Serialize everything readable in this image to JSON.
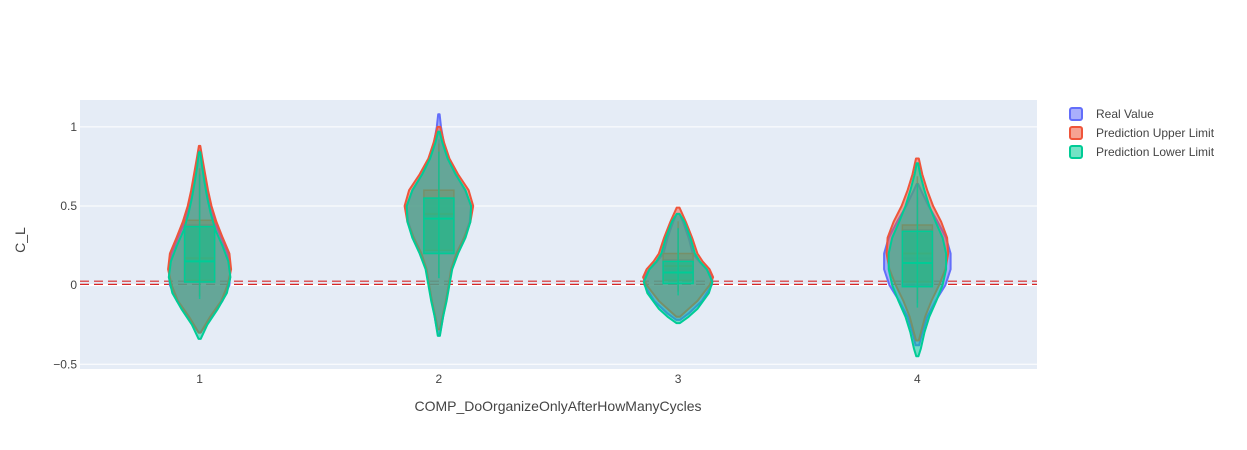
{
  "chart_data": {
    "type": "violin",
    "xlabel": "COMP_DoOrganizeOnlyAfterHowManyCycles",
    "ylabel": "C_L",
    "categories": [
      "1",
      "2",
      "3",
      "4"
    ],
    "ylim": [
      -0.53,
      1.17
    ],
    "yticks": [
      {
        "value": 1,
        "label": "1"
      },
      {
        "value": 0.5,
        "label": "0.5"
      },
      {
        "value": 0,
        "label": "0"
      },
      {
        "value": -0.5,
        "label": "−0.5"
      }
    ],
    "grid": true,
    "legend_position": "top-right",
    "reference_lines": [
      {
        "y": 0.025,
        "color": "#d62728",
        "style": "dashed"
      },
      {
        "y": 0.005,
        "color": "#d62728",
        "style": "dashed"
      }
    ],
    "series": [
      {
        "name": "Real Value",
        "color": "#636efa",
        "violins": [
          {
            "category": "1",
            "min": -0.3,
            "q1": 0.02,
            "median": 0.16,
            "q3": 0.38,
            "max": 0.85,
            "profile": [
              [
                -0.3,
                0.03
              ],
              [
                -0.2,
                0.32
              ],
              [
                -0.1,
                0.65
              ],
              [
                0.0,
                0.85
              ],
              [
                0.1,
                0.88
              ],
              [
                0.2,
                0.8
              ],
              [
                0.3,
                0.62
              ],
              [
                0.4,
                0.42
              ],
              [
                0.5,
                0.3
              ],
              [
                0.6,
                0.2
              ],
              [
                0.7,
                0.12
              ],
              [
                0.8,
                0.05
              ],
              [
                0.85,
                0.02
              ]
            ]
          },
          {
            "category": "2",
            "min": -0.32,
            "q1": 0.2,
            "median": 0.44,
            "q3": 0.55,
            "max": 1.08,
            "profile": [
              [
                -0.32,
                0.02
              ],
              [
                -0.25,
                0.08
              ],
              [
                -0.1,
                0.2
              ],
              [
                0.0,
                0.28
              ],
              [
                0.1,
                0.36
              ],
              [
                0.2,
                0.52
              ],
              [
                0.3,
                0.72
              ],
              [
                0.4,
                0.88
              ],
              [
                0.5,
                0.92
              ],
              [
                0.6,
                0.75
              ],
              [
                0.7,
                0.48
              ],
              [
                0.8,
                0.26
              ],
              [
                0.9,
                0.14
              ],
              [
                1.0,
                0.06
              ],
              [
                1.08,
                0.02
              ]
            ]
          },
          {
            "category": "3",
            "min": -0.22,
            "q1": 0.03,
            "median": 0.1,
            "q3": 0.16,
            "max": 0.45,
            "profile": [
              [
                -0.22,
                0.05
              ],
              [
                -0.18,
                0.3
              ],
              [
                -0.1,
                0.68
              ],
              [
                0.0,
                0.96
              ],
              [
                0.05,
                0.98
              ],
              [
                0.1,
                0.82
              ],
              [
                0.15,
                0.6
              ],
              [
                0.2,
                0.42
              ],
              [
                0.3,
                0.3
              ],
              [
                0.4,
                0.14
              ],
              [
                0.45,
                0.04
              ]
            ]
          },
          {
            "category": "4",
            "min": -0.38,
            "q1": 0.0,
            "median": 0.17,
            "q3": 0.35,
            "max": 0.64,
            "profile": [
              [
                -0.38,
                0.05
              ],
              [
                -0.3,
                0.14
              ],
              [
                -0.2,
                0.28
              ],
              [
                -0.1,
                0.52
              ],
              [
                0.0,
                0.8
              ],
              [
                0.1,
                0.95
              ],
              [
                0.2,
                0.95
              ],
              [
                0.3,
                0.82
              ],
              [
                0.4,
                0.58
              ],
              [
                0.5,
                0.32
              ],
              [
                0.6,
                0.1
              ],
              [
                0.64,
                0.02
              ]
            ]
          }
        ]
      },
      {
        "name": "Prediction Upper Limit",
        "color": "#ef553b",
        "violins": [
          {
            "category": "1",
            "min": -0.3,
            "q1": 0.03,
            "median": 0.17,
            "q3": 0.41,
            "max": 0.88,
            "profile": [
              [
                -0.3,
                0.03
              ],
              [
                -0.2,
                0.3
              ],
              [
                -0.1,
                0.62
              ],
              [
                0.0,
                0.8
              ],
              [
                0.1,
                0.9
              ],
              [
                0.2,
                0.85
              ],
              [
                0.3,
                0.66
              ],
              [
                0.4,
                0.48
              ],
              [
                0.5,
                0.34
              ],
              [
                0.6,
                0.24
              ],
              [
                0.7,
                0.16
              ],
              [
                0.8,
                0.08
              ],
              [
                0.88,
                0.02
              ]
            ]
          },
          {
            "category": "2",
            "min": -0.28,
            "q1": 0.22,
            "median": 0.45,
            "q3": 0.6,
            "max": 1.02,
            "profile": [
              [
                -0.28,
                0.03
              ],
              [
                -0.2,
                0.1
              ],
              [
                -0.1,
                0.2
              ],
              [
                0.0,
                0.28
              ],
              [
                0.1,
                0.35
              ],
              [
                0.2,
                0.5
              ],
              [
                0.3,
                0.72
              ],
              [
                0.4,
                0.9
              ],
              [
                0.5,
                0.98
              ],
              [
                0.6,
                0.85
              ],
              [
                0.7,
                0.55
              ],
              [
                0.8,
                0.3
              ],
              [
                0.9,
                0.15
              ],
              [
                1.0,
                0.04
              ]
            ]
          },
          {
            "category": "3",
            "min": -0.2,
            "q1": 0.03,
            "median": 0.12,
            "q3": 0.2,
            "max": 0.49,
            "profile": [
              [
                -0.2,
                0.05
              ],
              [
                -0.15,
                0.3
              ],
              [
                -0.1,
                0.55
              ],
              [
                0.0,
                0.9
              ],
              [
                0.05,
                1.0
              ],
              [
                0.1,
                0.9
              ],
              [
                0.15,
                0.7
              ],
              [
                0.2,
                0.55
              ],
              [
                0.3,
                0.4
              ],
              [
                0.4,
                0.22
              ],
              [
                0.49,
                0.04
              ]
            ]
          },
          {
            "category": "4",
            "min": -0.35,
            "q1": 0.02,
            "median": 0.2,
            "q3": 0.38,
            "max": 0.82,
            "profile": [
              [
                -0.35,
                0.04
              ],
              [
                -0.3,
                0.1
              ],
              [
                -0.2,
                0.22
              ],
              [
                -0.1,
                0.4
              ],
              [
                0.0,
                0.62
              ],
              [
                0.1,
                0.8
              ],
              [
                0.2,
                0.88
              ],
              [
                0.3,
                0.85
              ],
              [
                0.4,
                0.68
              ],
              [
                0.5,
                0.45
              ],
              [
                0.6,
                0.28
              ],
              [
                0.7,
                0.14
              ],
              [
                0.8,
                0.04
              ]
            ]
          }
        ]
      },
      {
        "name": "Prediction Lower Limit",
        "color": "#00cc96",
        "violins": [
          {
            "category": "1",
            "min": -0.34,
            "q1": 0.02,
            "median": 0.15,
            "q3": 0.37,
            "max": 0.84,
            "profile": [
              [
                -0.34,
                0.03
              ],
              [
                -0.25,
                0.22
              ],
              [
                -0.15,
                0.52
              ],
              [
                -0.05,
                0.78
              ],
              [
                0.05,
                0.88
              ],
              [
                0.15,
                0.82
              ],
              [
                0.25,
                0.65
              ],
              [
                0.35,
                0.45
              ],
              [
                0.45,
                0.32
              ],
              [
                0.55,
                0.22
              ],
              [
                0.65,
                0.14
              ],
              [
                0.75,
                0.07
              ],
              [
                0.84,
                0.02
              ]
            ]
          },
          {
            "category": "2",
            "min": -0.32,
            "q1": 0.2,
            "median": 0.42,
            "q3": 0.55,
            "max": 0.97,
            "profile": [
              [
                -0.32,
                0.03
              ],
              [
                -0.2,
                0.12
              ],
              [
                -0.1,
                0.22
              ],
              [
                0.0,
                0.3
              ],
              [
                0.1,
                0.38
              ],
              [
                0.2,
                0.55
              ],
              [
                0.3,
                0.76
              ],
              [
                0.4,
                0.9
              ],
              [
                0.5,
                0.92
              ],
              [
                0.6,
                0.76
              ],
              [
                0.7,
                0.48
              ],
              [
                0.8,
                0.25
              ],
              [
                0.9,
                0.1
              ],
              [
                0.97,
                0.02
              ]
            ]
          },
          {
            "category": "3",
            "min": -0.24,
            "q1": 0.01,
            "median": 0.08,
            "q3": 0.15,
            "max": 0.45,
            "profile": [
              [
                -0.24,
                0.05
              ],
              [
                -0.2,
                0.3
              ],
              [
                -0.15,
                0.55
              ],
              [
                -0.05,
                0.88
              ],
              [
                0.02,
                0.98
              ],
              [
                0.1,
                0.82
              ],
              [
                0.15,
                0.62
              ],
              [
                0.2,
                0.48
              ],
              [
                0.3,
                0.35
              ],
              [
                0.4,
                0.18
              ],
              [
                0.45,
                0.04
              ]
            ]
          },
          {
            "category": "4",
            "min": -0.45,
            "q1": -0.01,
            "median": 0.14,
            "q3": 0.34,
            "max": 0.77,
            "profile": [
              [
                -0.45,
                0.03
              ],
              [
                -0.4,
                0.1
              ],
              [
                -0.3,
                0.2
              ],
              [
                -0.2,
                0.34
              ],
              [
                -0.1,
                0.54
              ],
              [
                0.0,
                0.72
              ],
              [
                0.1,
                0.82
              ],
              [
                0.2,
                0.82
              ],
              [
                0.3,
                0.72
              ],
              [
                0.4,
                0.52
              ],
              [
                0.5,
                0.34
              ],
              [
                0.6,
                0.2
              ],
              [
                0.7,
                0.08
              ],
              [
                0.77,
                0.02
              ]
            ]
          }
        ]
      }
    ]
  }
}
